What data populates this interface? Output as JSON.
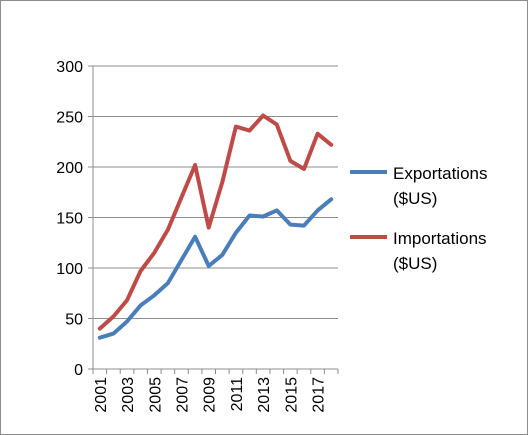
{
  "chart_data": {
    "type": "line",
    "title": "",
    "xlabel": "",
    "ylabel": "",
    "x": [
      2001,
      2002,
      2003,
      2004,
      2005,
      2006,
      2007,
      2008,
      2009,
      2010,
      2011,
      2012,
      2013,
      2014,
      2015,
      2016,
      2017,
      2018
    ],
    "x_tick_labels": [
      "2001",
      "2003",
      "2005",
      "2007",
      "2009",
      "2011",
      "2013",
      "2015",
      "2017"
    ],
    "x_tick_values": [
      2001,
      2003,
      2005,
      2007,
      2009,
      2011,
      2013,
      2015,
      2017
    ],
    "ylim": [
      0,
      300
    ],
    "y_ticks": [
      0,
      50,
      100,
      150,
      200,
      250,
      300
    ],
    "grid": "horizontal",
    "legend_position": "right",
    "series": [
      {
        "name_line1": "Exportations",
        "name_line2": "($US)",
        "color": "#4a7ebb",
        "values": [
          31,
          35,
          47,
          63,
          73,
          85,
          108,
          131,
          102,
          113,
          135,
          152,
          151,
          157,
          143,
          142,
          157,
          168
        ]
      },
      {
        "name_line1": "Importations",
        "name_line2": "($US)",
        "color": "#be4b48",
        "values": [
          40,
          52,
          68,
          97,
          115,
          138,
          170,
          202,
          140,
          185,
          240,
          236,
          251,
          242,
          206,
          198,
          233,
          222
        ]
      }
    ]
  }
}
